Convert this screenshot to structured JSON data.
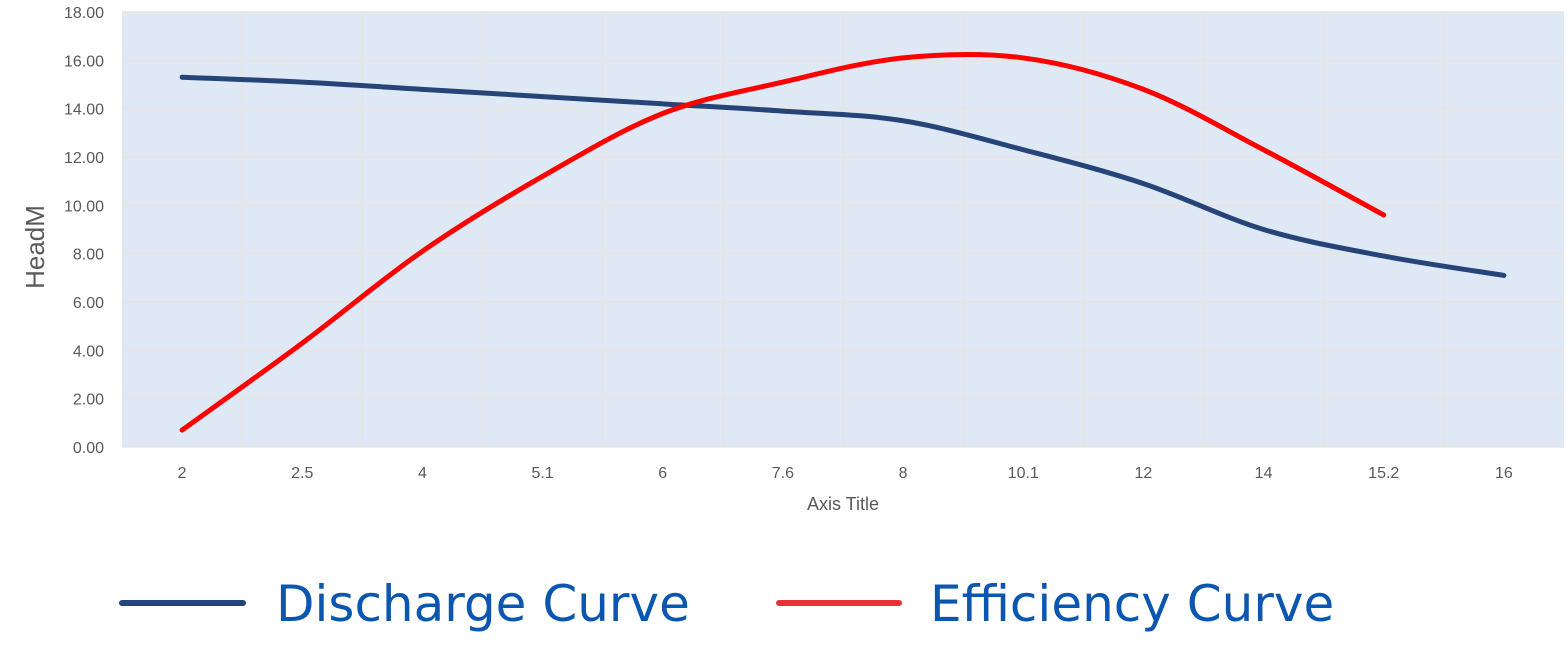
{
  "chart_data": {
    "type": "line",
    "title": "",
    "xlabel": "Axis Title",
    "ylabel": "HeadM",
    "categories": [
      "2",
      "2.5",
      "4",
      "5.1",
      "6",
      "7.6",
      "8",
      "10.1",
      "12",
      "14",
      "15.2",
      "16"
    ],
    "y_ticks": [
      "0.00",
      "2.00",
      "4.00",
      "6.00",
      "8.00",
      "10.00",
      "12.00",
      "14.00",
      "16.00",
      "18.00"
    ],
    "ylim": [
      0,
      18
    ],
    "grid": true,
    "legend_position": "bottom",
    "series": [
      {
        "name": "Discharge Curve",
        "color": "#264478",
        "values": [
          15.3,
          15.1,
          14.8,
          14.5,
          14.2,
          13.9,
          13.5,
          12.3,
          10.9,
          9.0,
          7.9,
          7.1
        ]
      },
      {
        "name": "Efficiency Curve",
        "color": "#ff0000",
        "values": [
          0.7,
          4.3,
          8.1,
          11.2,
          13.8,
          15.1,
          16.1,
          16.1,
          14.8,
          12.3,
          9.6,
          null
        ]
      }
    ]
  },
  "colors": {
    "plot_background": "#dee9f5",
    "gridline": "#e8e4e1",
    "legend_discharge_line": "#264478",
    "legend_efficiency_line": "#e8323a"
  }
}
